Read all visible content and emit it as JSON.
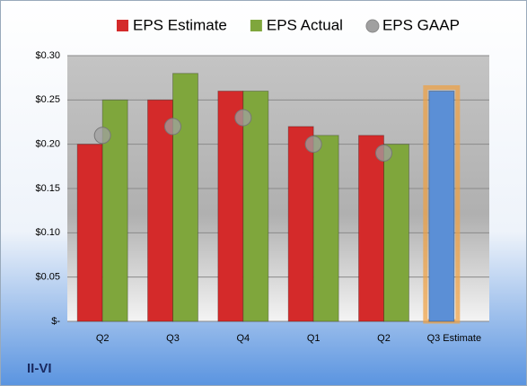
{
  "chart_data": {
    "type": "bar",
    "label": "II-VI",
    "categories": [
      "Q2",
      "Q3",
      "Q4",
      "Q1",
      "Q2",
      "Q3 Estimate"
    ],
    "series": [
      {
        "name": "EPS Estimate",
        "color": "#d42a2a",
        "values": [
          0.2,
          0.25,
          0.26,
          0.22,
          0.21,
          0.26
        ]
      },
      {
        "name": "EPS Actual",
        "color": "#7fa63c",
        "values": [
          0.25,
          0.28,
          0.26,
          0.21,
          0.2,
          null
        ]
      },
      {
        "name": "EPS GAAP",
        "color": "#a0a0a0",
        "marker": "circle",
        "values": [
          0.21,
          0.22,
          0.23,
          0.2,
          0.19,
          null
        ]
      }
    ],
    "estimate_color": "#5b8fd6",
    "ylim": [
      0,
      0.3
    ],
    "yticks": [
      {
        "value": 0,
        "label": "$-"
      },
      {
        "value": 0.05,
        "label": "$0.05"
      },
      {
        "value": 0.1,
        "label": "$0.10"
      },
      {
        "value": 0.15,
        "label": "$0.15"
      },
      {
        "value": 0.2,
        "label": "$0.20"
      },
      {
        "value": 0.25,
        "label": "$0.25"
      },
      {
        "value": 0.3,
        "label": "$0.30"
      }
    ],
    "grid": true
  }
}
